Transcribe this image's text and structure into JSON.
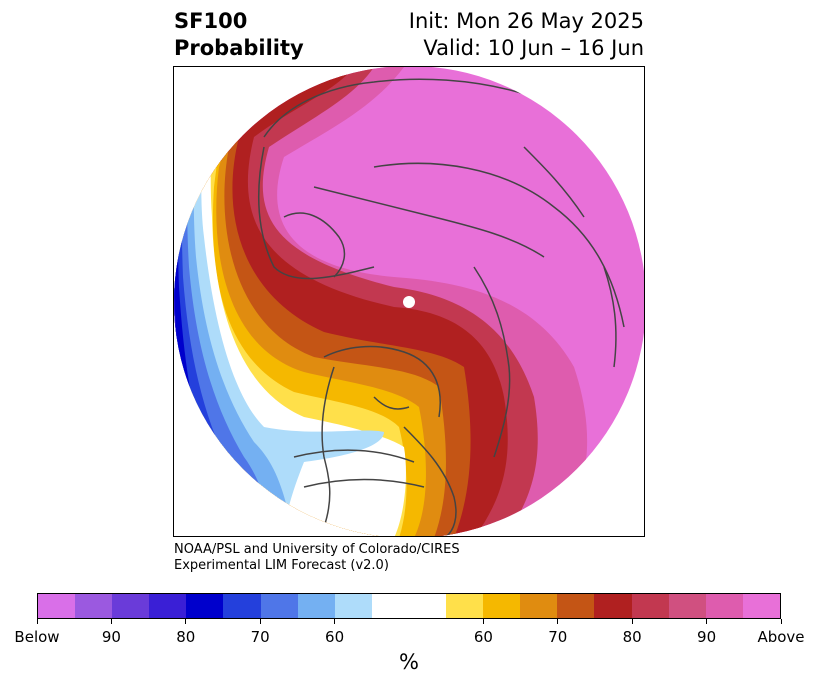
{
  "header": {
    "title_line1": "SF100",
    "title_line2": "Probability",
    "init": "Init: Mon 26 May 2025",
    "valid": "Valid: 10 Jun – 16 Jun"
  },
  "credit": {
    "line1": "NOAA/PSL and University of Colorado/CIRES",
    "line2": "Experimental LIM Forecast (v2.0)"
  },
  "colorbar": {
    "units": "%",
    "colors": [
      "#d96fe8",
      "#9b59e0",
      "#6a3bd9",
      "#3a1fd6",
      "#0000cc",
      "#2440dc",
      "#4f76e8",
      "#74b0f2",
      "#aedcfa",
      "#ffffff",
      "#ffffff",
      "#ffe04a",
      "#f5b800",
      "#e08c10",
      "#c45515",
      "#b02020",
      "#c23850",
      "#d05080",
      "#de5cae",
      "#e870d8"
    ],
    "labels": [
      "Below",
      "90",
      "80",
      "70",
      "60",
      "60",
      "70",
      "80",
      "90",
      "Above"
    ]
  },
  "map": {
    "colors": {
      "above": "#e870d8",
      "p90": "#de5cae",
      "p80": "#c23850",
      "p75": "#b02020",
      "p70": "#c45515",
      "p65": "#e08c10",
      "p60": "#f5b800",
      "p55": "#ffe04a",
      "b60": "#aedcfa",
      "b65": "#74b0f2",
      "b70": "#4f76e8",
      "b80": "#2440dc",
      "b85": "#0000cc",
      "b90": "#3a1fd6",
      "coast": "#444444"
    }
  }
}
